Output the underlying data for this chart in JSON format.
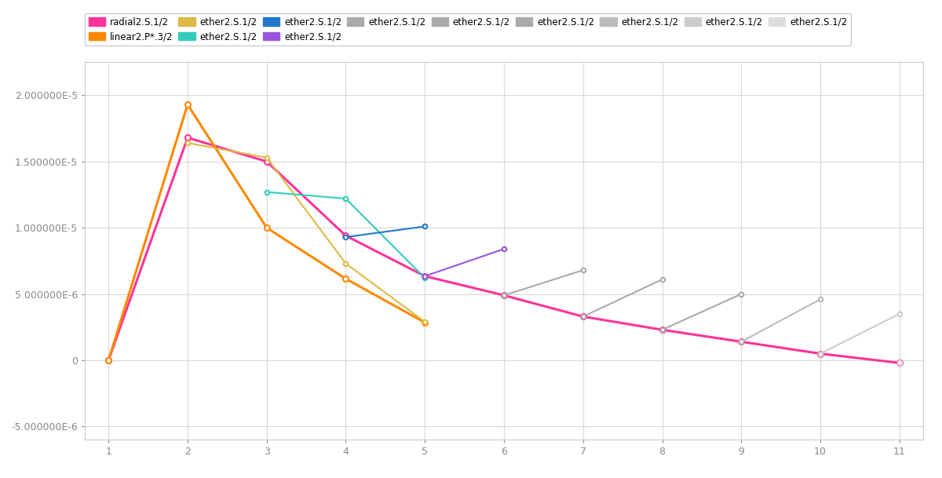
{
  "background_color": "#ffffff",
  "grid_color": "#d8d8d8",
  "ylim": [
    -6e-06,
    2.25e-05
  ],
  "xlim": [
    0.7,
    11.3
  ],
  "xticks": [
    1,
    2,
    3,
    4,
    5,
    6,
    7,
    8,
    9,
    10,
    11
  ],
  "yticks": [
    -5e-06,
    0,
    5e-06,
    1e-05,
    1.5e-05,
    2e-05
  ],
  "ytick_labels": [
    "-5.000000E-6",
    "0",
    "5.000000E-6",
    "1.000000E-5",
    "1.500000E-5",
    "2.000000E-5"
  ],
  "series": [
    {
      "label": "radial2.S.1/2",
      "color": "#ff3399",
      "x": [
        1,
        2,
        3,
        4,
        5,
        6,
        7,
        8,
        9,
        10,
        11
      ],
      "y": [
        0,
        1.68e-05,
        1.5e-05,
        9.4e-06,
        6.35e-06,
        4.9e-06,
        3.3e-06,
        2.3e-06,
        1.4e-06,
        5e-07,
        -2e-07
      ],
      "linewidth": 2.2,
      "marker": "o",
      "markersize": 5
    },
    {
      "label": "linear2.P*.3/2",
      "color": "#ff8800",
      "x": [
        1,
        2,
        3,
        4,
        5
      ],
      "y": [
        0,
        1.93e-05,
        1e-05,
        6.15e-06,
        2.85e-06
      ],
      "linewidth": 2.2,
      "marker": "o",
      "markersize": 5
    },
    {
      "label": "ether2.S.1/2",
      "color": "#ddbb44",
      "x": [
        2,
        3,
        4,
        5
      ],
      "y": [
        1.64e-05,
        1.53e-05,
        7.3e-06,
        2.9e-06
      ],
      "linewidth": 1.5,
      "marker": "o",
      "markersize": 4
    },
    {
      "label": "ether2.S.1/2",
      "color": "#33ccbb",
      "x": [
        3,
        4,
        5
      ],
      "y": [
        1.27e-05,
        1.22e-05,
        6.2e-06
      ],
      "linewidth": 1.5,
      "marker": "o",
      "markersize": 4
    },
    {
      "label": "ether2.S.1/2",
      "color": "#2277cc",
      "x": [
        4,
        5
      ],
      "y": [
        9.3e-06,
        1.01e-05
      ],
      "linewidth": 1.5,
      "marker": "o",
      "markersize": 4
    },
    {
      "label": "ether2.S.1/2",
      "color": "#9955dd",
      "x": [
        5,
        6
      ],
      "y": [
        6.35e-06,
        8.4e-06
      ],
      "linewidth": 1.5,
      "marker": "o",
      "markersize": 4
    },
    {
      "label": "ether2.S.1/2",
      "color": "#aaaaaa",
      "x": [
        6,
        7
      ],
      "y": [
        4.9e-06,
        6.8e-06
      ],
      "linewidth": 1.5,
      "marker": "o",
      "markersize": 4
    },
    {
      "label": "ether2.S.1/2",
      "color": "#aaaaaa",
      "x": [
        7,
        8
      ],
      "y": [
        3.3e-06,
        6.1e-06
      ],
      "linewidth": 1.5,
      "marker": "o",
      "markersize": 4
    },
    {
      "label": "ether2.S.1/2",
      "color": "#aaaaaa",
      "x": [
        8,
        9
      ],
      "y": [
        2.3e-06,
        5e-06
      ],
      "linewidth": 1.5,
      "marker": "o",
      "markersize": 4
    },
    {
      "label": "ether2.S.1/2",
      "color": "#bbbbbb",
      "x": [
        9,
        10
      ],
      "y": [
        1.4e-06,
        4.6e-06
      ],
      "linewidth": 1.5,
      "marker": "o",
      "markersize": 4
    },
    {
      "label": "ether2.S.1/2",
      "color": "#cccccc",
      "x": [
        10,
        11
      ],
      "y": [
        5e-07,
        3.5e-06
      ],
      "linewidth": 1.5,
      "marker": "o",
      "markersize": 4
    },
    {
      "label": "ether2.S.1/2",
      "color": "#dddddd",
      "x": [
        11
      ],
      "y": [
        -2e-07
      ],
      "linewidth": 1.5,
      "marker": "o",
      "markersize": 4
    }
  ],
  "legend_colors": [
    "#ff3399",
    "#ff8800",
    "#ddbb44",
    "#33ccbb",
    "#2277cc",
    "#9955dd",
    "#aaaaaa",
    "#aaaaaa",
    "#aaaaaa",
    "#bbbbbb",
    "#cccccc",
    "#dddddd"
  ],
  "legend_labels": [
    "radial2.S.1/2",
    "linear2.P*.3/2",
    "ether2.S.1/2",
    "ether2.S.1/2",
    "ether2.S.1/2",
    "ether2.S.1/2",
    "ether2.S.1/2",
    "ether2.S.1/2",
    "ether2.S.1/2",
    "ether2.S.1/2",
    "ether2.S.1/2",
    "ether2.S.1/2"
  ],
  "legend_ncol_row1": 9,
  "legend_ncol_row2": 3
}
